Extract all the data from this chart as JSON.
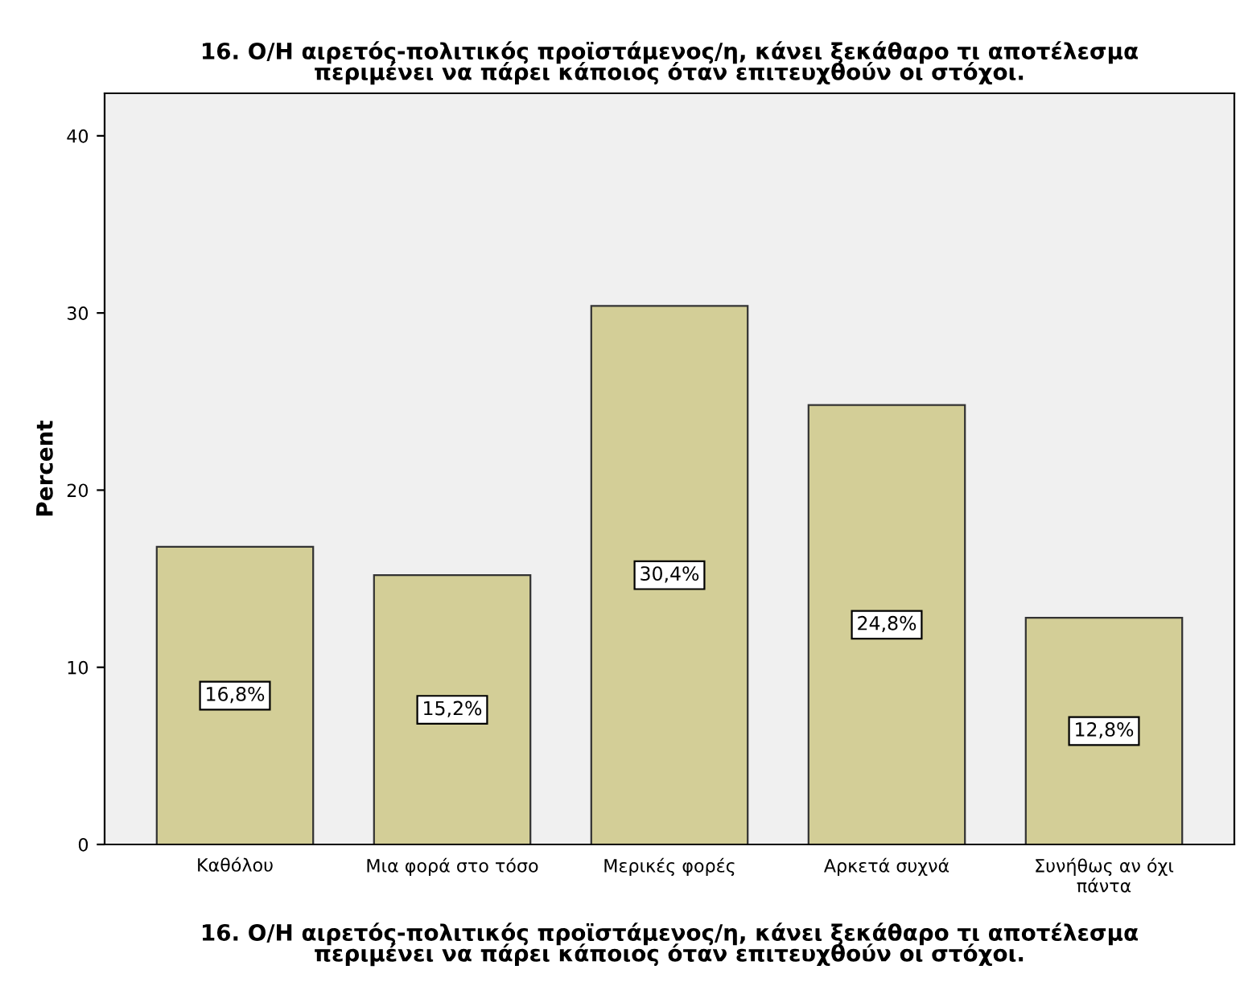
{
  "chart_data": {
    "type": "bar",
    "title": "16. Ο/Η αιρετός-πολιτικός προϊστάμενος/η, κάνει ξεκάθαρο τι αποτέλεσμα\nπεριμένει να πάρει κάποιος όταν επιτευχθούν οι στόχοι.",
    "xlabel": "16. Ο/Η αιρετός-πολιτικός προϊστάμενος/η, κάνει ξεκάθαρο τι αποτέλεσμα\nπεριμένει να πάρει κάποιος όταν επιτευχθούν οι στόχοι.",
    "ylabel": "Percent",
    "categories": [
      "Καθόλου",
      "Μια φορά στο τόσο",
      "Μερικές φορές",
      "Αρκετά συχνά",
      "Συνήθως αν όχι\nπάντα"
    ],
    "values": [
      16.8,
      15.2,
      30.4,
      24.8,
      12.8
    ],
    "value_labels": [
      "16,8%",
      "15,2%",
      "30,4%",
      "24,8%",
      "12,8%"
    ],
    "color": "#d3ce97",
    "ylim": [
      0,
      42.4
    ],
    "yticks": [
      0,
      10,
      20,
      30,
      40
    ],
    "grid": false,
    "legend": false
  }
}
